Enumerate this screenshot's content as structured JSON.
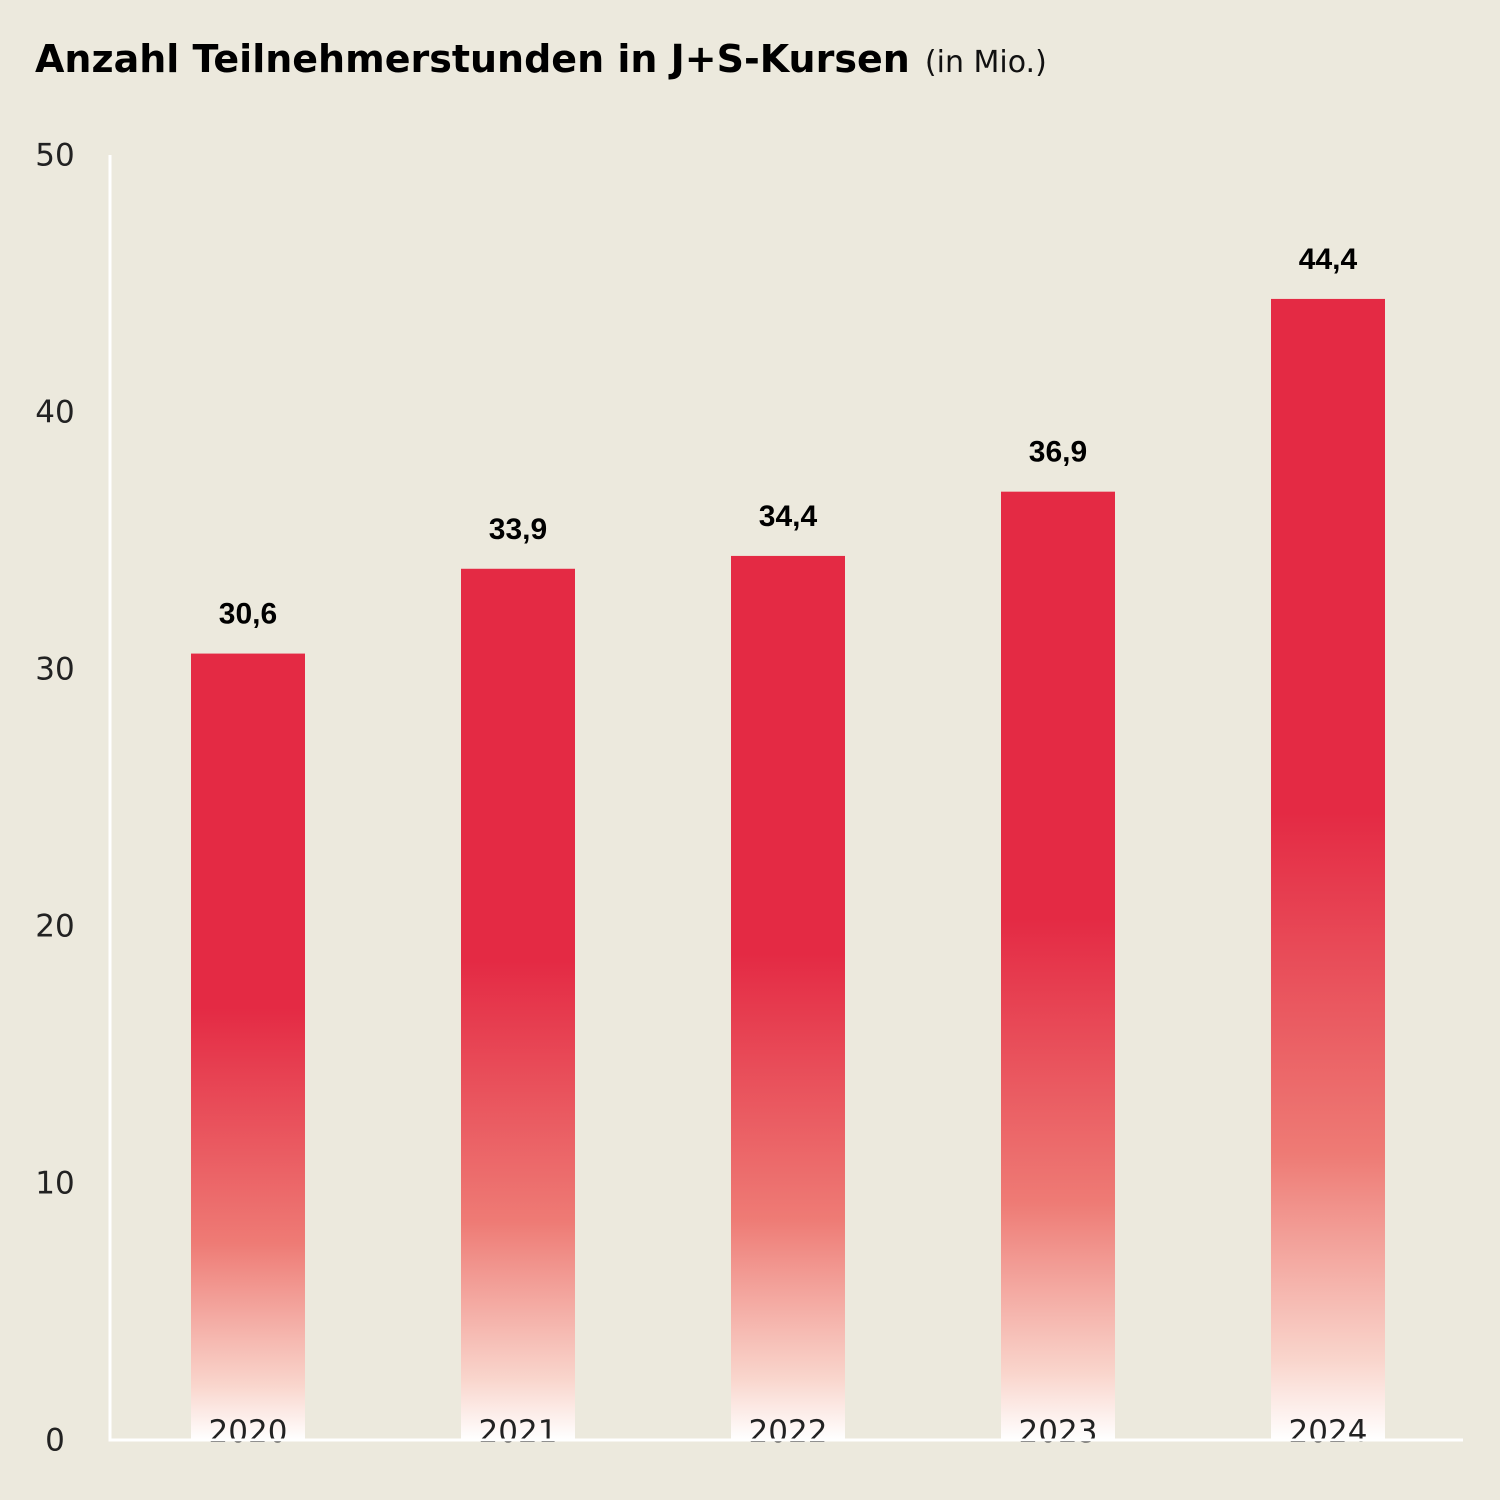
{
  "chart_data": {
    "type": "bar",
    "title": "Anzahl Teilnehmerstunden in J+S-Kursen",
    "subtitle": "(in Mio.)",
    "categories": [
      "2020",
      "2021",
      "2022",
      "2023",
      "2024"
    ],
    "values": [
      30.6,
      33.9,
      34.4,
      36.9,
      44.4
    ],
    "value_labels": [
      "30,6",
      "33,9",
      "34,4",
      "36,9",
      "44,4"
    ],
    "color": "#e42a44",
    "ylim": [
      0,
      50
    ],
    "yticks": [
      0,
      10,
      20,
      30,
      40,
      50
    ],
    "grid": false
  }
}
